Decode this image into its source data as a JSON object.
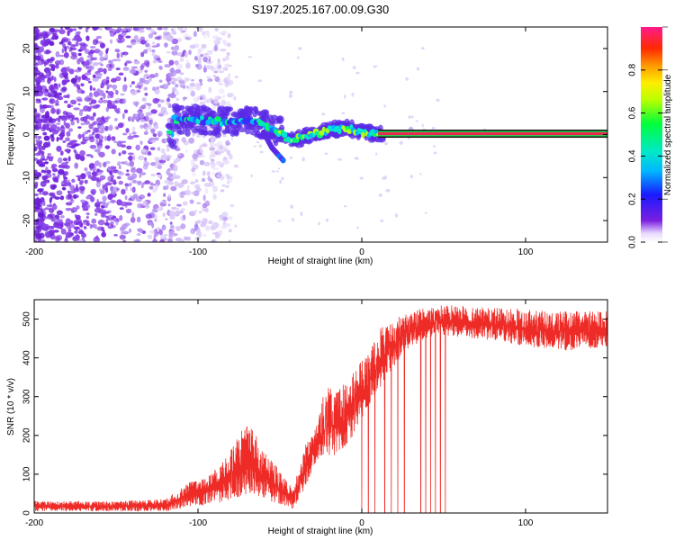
{
  "title": "S197.2025.167.00.09.G30",
  "colors": {
    "snr_line": "#ee2b26",
    "carrier_band": "#e8294f",
    "speckle": "#6a1fd6"
  },
  "chart_data": [
    {
      "type": "heatmap",
      "xlabel": "Height of straight line (km)",
      "ylabel": "Frequency (Hz)",
      "xlim": [
        -200,
        150
      ],
      "ylim": [
        -25,
        25
      ],
      "x_ticks": [
        -200,
        -100,
        0,
        100
      ],
      "y_ticks": [
        -20,
        -10,
        0,
        10,
        20
      ],
      "colorbar": {
        "label": "Normalized spectral amplitude",
        "ticks": [
          0.0,
          0.2,
          0.4,
          0.6,
          0.8
        ],
        "range": [
          0,
          1
        ],
        "colormap": "rainbow (violet-blue-cyan-green-yellow-orange-red-magenta)"
      },
      "features": {
        "noise_speckle_region_x": [
          -200,
          -100
        ],
        "signal_trace": [
          {
            "x": -115,
            "y": 3.5
          },
          {
            "x": -100,
            "y": 3.5
          },
          {
            "x": -85,
            "y": 3.0
          },
          {
            "x": -70,
            "y": 3.0
          },
          {
            "x": -60,
            "y": 2.5
          },
          {
            "x": -50,
            "y": 0.5
          },
          {
            "x": -45,
            "y": -1.5
          },
          {
            "x": -40,
            "y": -1.0
          },
          {
            "x": -30,
            "y": 0.0
          },
          {
            "x": -20,
            "y": 1.0
          },
          {
            "x": -10,
            "y": 1.5
          },
          {
            "x": 0,
            "y": 0.5
          },
          {
            "x": 10,
            "y": 0.2
          },
          {
            "x": 150,
            "y": 0.2
          }
        ],
        "branch_trace": [
          {
            "x": -60,
            "y": 0.5
          },
          {
            "x": -55,
            "y": -3.0
          },
          {
            "x": -48,
            "y": -6.0
          }
        ],
        "carrier_band_x": [
          10,
          150
        ],
        "carrier_band_y": 0.2
      }
    },
    {
      "type": "line",
      "xlabel": "Height of straight line (km)",
      "ylabel": "SNR (10 * v/v)",
      "xlim": [
        -200,
        150
      ],
      "ylim": [
        0,
        550
      ],
      "x_ticks": [
        -200,
        -100,
        0,
        100
      ],
      "y_ticks": [
        0,
        100,
        200,
        300,
        400,
        500
      ],
      "envelope": [
        {
          "x": -200,
          "base": 5,
          "top": 30
        },
        {
          "x": -150,
          "base": 5,
          "top": 30
        },
        {
          "x": -120,
          "base": 5,
          "top": 35
        },
        {
          "x": -105,
          "base": 15,
          "top": 80
        },
        {
          "x": -95,
          "base": 20,
          "top": 90
        },
        {
          "x": -85,
          "base": 30,
          "top": 130
        },
        {
          "x": -75,
          "base": 40,
          "top": 210
        },
        {
          "x": -68,
          "base": 50,
          "top": 230
        },
        {
          "x": -60,
          "base": 40,
          "top": 160
        },
        {
          "x": -50,
          "base": 20,
          "top": 110
        },
        {
          "x": -42,
          "base": 10,
          "top": 60
        },
        {
          "x": -35,
          "base": 60,
          "top": 170
        },
        {
          "x": -28,
          "base": 120,
          "top": 220
        },
        {
          "x": -22,
          "base": 140,
          "top": 330
        },
        {
          "x": -15,
          "base": 150,
          "top": 310
        },
        {
          "x": -8,
          "base": 180,
          "top": 350
        },
        {
          "x": -2,
          "base": 230,
          "top": 380
        },
        {
          "x": 5,
          "base": 280,
          "top": 420
        },
        {
          "x": 12,
          "base": 330,
          "top": 480
        },
        {
          "x": 20,
          "base": 380,
          "top": 500
        },
        {
          "x": 30,
          "base": 430,
          "top": 520
        },
        {
          "x": 45,
          "base": 460,
          "top": 535
        },
        {
          "x": 60,
          "base": 455,
          "top": 535
        },
        {
          "x": 80,
          "base": 445,
          "top": 530
        },
        {
          "x": 100,
          "base": 430,
          "top": 525
        },
        {
          "x": 125,
          "base": 420,
          "top": 520
        },
        {
          "x": 150,
          "base": 425,
          "top": 520
        }
      ],
      "dropouts_x": [
        0,
        4,
        8,
        14,
        18,
        22,
        26,
        36,
        39,
        42,
        45,
        48,
        51
      ]
    }
  ]
}
